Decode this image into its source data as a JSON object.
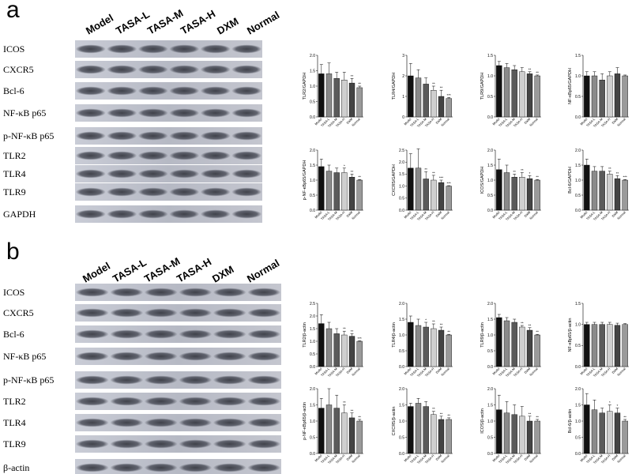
{
  "panels": [
    {
      "letter": "a",
      "lanes": [
        "Model",
        "TASA-L",
        "TASA-M",
        "TASA-H",
        "DXM",
        "Normal"
      ],
      "rows": [
        "ICOS",
        "CXCR5",
        "Bcl-6",
        "NF-κB p65",
        "p-NF-κB p65",
        "TLR2",
        "TLR4",
        "TLR9",
        "GAPDH"
      ]
    },
    {
      "letter": "b",
      "lanes": [
        "Model",
        "TASA-L",
        "TASA-M",
        "TASA-H",
        "DXM",
        "Normal"
      ],
      "rows": [
        "ICOS",
        "CXCR5",
        "Bcl-6",
        "NF-κB p65",
        "p-NF-κB p65",
        "TLR2",
        "TLR4",
        "TLR9",
        "β-actin"
      ]
    }
  ],
  "chart_data": [
    {
      "type": "bar",
      "ylabel": "TLR2/GAPDH",
      "categories": [
        "Model",
        "TASA-L",
        "TASA-M",
        "TASA-H",
        "DXM",
        "Normal"
      ],
      "values": [
        1.4,
        1.4,
        1.25,
        1.2,
        1.1,
        0.95
      ],
      "errors": [
        0.3,
        0.35,
        0.2,
        0.25,
        0.15,
        0.05
      ],
      "annotations": [
        null,
        null,
        null,
        null,
        "**",
        "**"
      ],
      "colors": [
        "#111111",
        "#8a8a8a",
        "#5a5a5a",
        "#cfcfcf",
        "#444444",
        "#9a9a9a"
      ],
      "ylim": [
        0,
        2
      ],
      "yticks": [
        {
          "value": 0,
          "label": "0.0"
        },
        0.5,
        {
          "value": 1,
          "label": "1.0"
        },
        1.5,
        {
          "value": 2,
          "label": "2.0"
        }
      ]
    },
    {
      "type": "bar",
      "ylabel": "TLR4/GAPDH",
      "categories": [
        "Model",
        "TASA-L",
        "TASA-M",
        "TASA-H",
        "DXM",
        "Normal"
      ],
      "values": [
        2.0,
        1.9,
        1.6,
        1.3,
        1.0,
        0.9
      ],
      "errors": [
        0.6,
        0.4,
        0.3,
        0.2,
        0.3,
        0.05
      ],
      "annotations": [
        null,
        null,
        null,
        "**",
        "**",
        "***"
      ],
      "colors": [
        "#111111",
        "#8a8a8a",
        "#5a5a5a",
        "#cfcfcf",
        "#444444",
        "#9a9a9a"
      ],
      "ylim": [
        0,
        3
      ],
      "yticks": [
        0,
        1,
        2,
        3
      ]
    },
    {
      "type": "bar",
      "ylabel": "TLR9/GAPDH",
      "categories": [
        "Model",
        "TASA-L",
        "TASA-M",
        "TASA-H",
        "DXM",
        "Normal"
      ],
      "values": [
        1.25,
        1.2,
        1.15,
        1.1,
        1.05,
        1.0
      ],
      "errors": [
        0.1,
        0.1,
        0.1,
        0.1,
        0.05,
        0.02
      ],
      "annotations": [
        null,
        null,
        null,
        null,
        "**",
        "**"
      ],
      "colors": [
        "#111111",
        "#8a8a8a",
        "#5a5a5a",
        "#cfcfcf",
        "#444444",
        "#9a9a9a"
      ],
      "ylim": [
        0,
        1.5
      ],
      "yticks": [
        {
          "value": 0,
          "label": "0.0"
        },
        0.5,
        {
          "value": 1,
          "label": "1.0"
        },
        1.5
      ]
    },
    {
      "type": "bar",
      "ylabel": "NF-κBp65/GAPDH",
      "categories": [
        "Model",
        "TASA-L",
        "TASA-M",
        "TASA-H",
        "DXM",
        "Normal"
      ],
      "values": [
        1.0,
        1.0,
        0.9,
        1.0,
        1.05,
        1.0
      ],
      "errors": [
        0.1,
        0.1,
        0.15,
        0.1,
        0.15,
        0.02
      ],
      "annotations": [
        null,
        null,
        null,
        null,
        null,
        null
      ],
      "colors": [
        "#111111",
        "#8a8a8a",
        "#5a5a5a",
        "#cfcfcf",
        "#444444",
        "#9a9a9a"
      ],
      "ylim": [
        0,
        1.5
      ],
      "yticks": [
        {
          "value": 0,
          "label": "0.0"
        },
        0.5,
        {
          "value": 1,
          "label": "1.0"
        },
        1.5
      ]
    },
    {
      "type": "bar",
      "ylabel": "p-NF-κBp65/GAPDH",
      "categories": [
        "Model",
        "TASA-L",
        "TASA-M",
        "TASA-H",
        "DXM",
        "Normal"
      ],
      "values": [
        1.45,
        1.3,
        1.25,
        1.25,
        1.1,
        1.0
      ],
      "errors": [
        0.25,
        0.2,
        0.15,
        0.15,
        0.1,
        0.02
      ],
      "annotations": [
        null,
        null,
        null,
        "*",
        "**",
        "**"
      ],
      "colors": [
        "#111111",
        "#8a8a8a",
        "#5a5a5a",
        "#cfcfcf",
        "#444444",
        "#9a9a9a"
      ],
      "ylim": [
        0,
        2
      ],
      "yticks": [
        {
          "value": 0,
          "label": "0.0"
        },
        0.5,
        {
          "value": 1,
          "label": "1.0"
        },
        1.5,
        {
          "value": 2,
          "label": "2.0"
        }
      ]
    },
    {
      "type": "bar",
      "ylabel": "CXCR5/GAPDH",
      "categories": [
        "Model",
        "TASA-L",
        "TASA-M",
        "TASA-H",
        "DXM",
        "Normal"
      ],
      "values": [
        1.75,
        1.75,
        1.3,
        1.25,
        1.15,
        1.0
      ],
      "errors": [
        0.6,
        0.8,
        0.3,
        0.2,
        0.1,
        0.02
      ],
      "annotations": [
        null,
        null,
        "**",
        "**",
        "***",
        "***"
      ],
      "colors": [
        "#111111",
        "#8a8a8a",
        "#5a5a5a",
        "#cfcfcf",
        "#444444",
        "#9a9a9a"
      ],
      "ylim": [
        0,
        2.5
      ],
      "yticks": [
        {
          "value": 0,
          "label": "0.0"
        },
        0.5,
        {
          "value": 1,
          "label": "1.0"
        },
        1.5,
        {
          "value": 2,
          "label": "2.0"
        },
        2.5
      ]
    },
    {
      "type": "bar",
      "ylabel": "ICOS/GAPDH",
      "categories": [
        "Model",
        "TASA-L",
        "TASA-M",
        "TASA-H",
        "DXM",
        "Normal"
      ],
      "values": [
        1.35,
        1.25,
        1.1,
        1.1,
        1.05,
        1.0
      ],
      "errors": [
        0.35,
        0.25,
        0.1,
        0.15,
        0.1,
        0.02
      ],
      "annotations": [
        null,
        null,
        "**",
        "**",
        "*",
        "**"
      ],
      "colors": [
        "#111111",
        "#8a8a8a",
        "#5a5a5a",
        "#cfcfcf",
        "#444444",
        "#9a9a9a"
      ],
      "ylim": [
        0,
        2
      ],
      "yticks": [
        {
          "value": 0,
          "label": "0.0"
        },
        0.5,
        {
          "value": 1,
          "label": "1.0"
        },
        1.5,
        {
          "value": 2,
          "label": "2.0"
        }
      ]
    },
    {
      "type": "bar",
      "ylabel": "Bcl-6/GAPDH",
      "categories": [
        "Model",
        "TASA-L",
        "TASA-M",
        "TASA-H",
        "DXM",
        "Normal"
      ],
      "values": [
        1.5,
        1.3,
        1.3,
        1.2,
        1.05,
        1.0
      ],
      "errors": [
        0.2,
        0.15,
        0.15,
        0.1,
        0.1,
        0.02
      ],
      "annotations": [
        null,
        null,
        null,
        "**",
        "**",
        "***"
      ],
      "colors": [
        "#111111",
        "#8a8a8a",
        "#5a5a5a",
        "#cfcfcf",
        "#444444",
        "#9a9a9a"
      ],
      "ylim": [
        0,
        2
      ],
      "yticks": [
        {
          "value": 0,
          "label": "0.0"
        },
        0.5,
        {
          "value": 1,
          "label": "1.0"
        },
        1.5,
        {
          "value": 2,
          "label": "2.0"
        }
      ]
    },
    {
      "type": "bar",
      "ylabel": "TLR2/β-actin",
      "categories": [
        "Model",
        "TASA-L",
        "TASA-M",
        "TASA-H",
        "DXM",
        "Normal"
      ],
      "values": [
        1.7,
        1.5,
        1.3,
        1.25,
        1.2,
        1.0
      ],
      "errors": [
        0.35,
        0.25,
        0.2,
        0.15,
        0.1,
        0.02
      ],
      "annotations": [
        null,
        null,
        null,
        "**",
        "**",
        "***"
      ],
      "colors": [
        "#111111",
        "#8a8a8a",
        "#5a5a5a",
        "#cfcfcf",
        "#444444",
        "#9a9a9a"
      ],
      "ylim": [
        0,
        2.5
      ],
      "yticks": [
        {
          "value": 0,
          "label": "0.0"
        },
        0.5,
        {
          "value": 1,
          "label": "1.0"
        },
        1.5,
        {
          "value": 2,
          "label": "2.0"
        },
        2.5
      ]
    },
    {
      "type": "bar",
      "ylabel": "TLR4/β-actin",
      "categories": [
        "Model",
        "TASA-L",
        "TASA-M",
        "TASA-H",
        "DXM",
        "Normal"
      ],
      "values": [
        1.4,
        1.3,
        1.25,
        1.2,
        1.15,
        1.0
      ],
      "errors": [
        0.2,
        0.2,
        0.15,
        0.15,
        0.1,
        0.02
      ],
      "annotations": [
        null,
        null,
        "*",
        "**",
        "**",
        "**"
      ],
      "colors": [
        "#111111",
        "#8a8a8a",
        "#5a5a5a",
        "#cfcfcf",
        "#444444",
        "#9a9a9a"
      ],
      "ylim": [
        0,
        2
      ],
      "yticks": [
        {
          "value": 0,
          "label": "0.0"
        },
        0.5,
        {
          "value": 1,
          "label": "1.0"
        },
        1.5,
        {
          "value": 2,
          "label": "2.0"
        }
      ]
    },
    {
      "type": "bar",
      "ylabel": "TLR9/β-actin",
      "categories": [
        "Model",
        "TASA-L",
        "TASA-M",
        "TASA-H",
        "DXM",
        "Normal"
      ],
      "values": [
        1.55,
        1.45,
        1.4,
        1.25,
        1.15,
        1.0
      ],
      "errors": [
        0.1,
        0.1,
        0.1,
        0.05,
        0.08,
        0.02
      ],
      "annotations": [
        null,
        null,
        null,
        "**",
        "**",
        "**"
      ],
      "colors": [
        "#111111",
        "#8a8a8a",
        "#5a5a5a",
        "#cfcfcf",
        "#444444",
        "#9a9a9a"
      ],
      "ylim": [
        0,
        2
      ],
      "yticks": [
        {
          "value": 0,
          "label": "0.0"
        },
        0.5,
        {
          "value": 1,
          "label": "1.0"
        },
        1.5,
        {
          "value": 2,
          "label": "2.0"
        }
      ]
    },
    {
      "type": "bar",
      "ylabel": "NF-κBp65/β-actin",
      "categories": [
        "Model",
        "TASA-L",
        "TASA-M",
        "TASA-H",
        "DXM",
        "Normal"
      ],
      "values": [
        1.0,
        1.0,
        1.0,
        1.0,
        0.98,
        1.0
      ],
      "errors": [
        0.05,
        0.05,
        0.05,
        0.05,
        0.05,
        0.02
      ],
      "annotations": [
        null,
        null,
        null,
        null,
        null,
        null
      ],
      "colors": [
        "#111111",
        "#8a8a8a",
        "#5a5a5a",
        "#cfcfcf",
        "#444444",
        "#9a9a9a"
      ],
      "ylim": [
        0,
        1.5
      ],
      "yticks": [
        {
          "value": 0,
          "label": "0.0"
        },
        0.5,
        {
          "value": 1,
          "label": "1.0"
        },
        1.5
      ]
    },
    {
      "type": "bar",
      "ylabel": "p-NF-κBp65/β-actin",
      "categories": [
        "Model",
        "TASA-L",
        "TASA-M",
        "TASA-H",
        "DXM",
        "Normal"
      ],
      "values": [
        1.4,
        1.5,
        1.4,
        1.25,
        1.1,
        1.0
      ],
      "errors": [
        0.3,
        0.5,
        0.4,
        0.25,
        0.15,
        0.05
      ],
      "annotations": [
        null,
        null,
        null,
        "**",
        "**",
        "**"
      ],
      "colors": [
        "#111111",
        "#8a8a8a",
        "#5a5a5a",
        "#cfcfcf",
        "#444444",
        "#9a9a9a"
      ],
      "ylim": [
        0,
        2
      ],
      "yticks": [
        {
          "value": 0,
          "label": "0.0"
        },
        0.5,
        {
          "value": 1,
          "label": "1.0"
        },
        1.5,
        {
          "value": 2,
          "label": "2.0"
        }
      ]
    },
    {
      "type": "bar",
      "ylabel": "CXCR5/β-actin",
      "categories": [
        "Model",
        "TASA-L",
        "TASA-M",
        "TASA-H",
        "DXM",
        "Normal"
      ],
      "values": [
        1.45,
        1.55,
        1.45,
        1.2,
        1.05,
        1.05
      ],
      "errors": [
        0.1,
        0.15,
        0.15,
        0.1,
        0.1,
        0.05
      ],
      "annotations": [
        null,
        null,
        null,
        "**",
        "**",
        "**"
      ],
      "colors": [
        "#111111",
        "#8a8a8a",
        "#5a5a5a",
        "#cfcfcf",
        "#444444",
        "#9a9a9a"
      ],
      "ylim": [
        0,
        2
      ],
      "yticks": [
        {
          "value": 0,
          "label": "0.0"
        },
        0.5,
        {
          "value": 1,
          "label": "1.0"
        },
        1.5,
        {
          "value": 2,
          "label": "2.0"
        }
      ]
    },
    {
      "type": "bar",
      "ylabel": "ICOS/β-actin",
      "categories": [
        "Model",
        "TASA-L",
        "TASA-M",
        "TASA-H",
        "DXM",
        "Normal"
      ],
      "values": [
        1.35,
        1.25,
        1.2,
        1.15,
        1.0,
        1.0
      ],
      "errors": [
        0.45,
        0.35,
        0.3,
        0.3,
        0.15,
        0.05
      ],
      "annotations": [
        null,
        null,
        null,
        null,
        "**",
        "**"
      ],
      "colors": [
        "#111111",
        "#8a8a8a",
        "#5a5a5a",
        "#cfcfcf",
        "#444444",
        "#9a9a9a"
      ],
      "ylim": [
        0,
        2
      ],
      "yticks": [
        {
          "value": 0,
          "label": "0.0"
        },
        0.5,
        {
          "value": 1,
          "label": "1.0"
        },
        1.5,
        {
          "value": 2,
          "label": "2.0"
        }
      ]
    },
    {
      "type": "bar",
      "ylabel": "Bcl-6/β-actin",
      "categories": [
        "Model",
        "TASA-L",
        "TASA-M",
        "TASA-H",
        "DXM",
        "Normal"
      ],
      "values": [
        1.5,
        1.35,
        1.25,
        1.3,
        1.25,
        1.0
      ],
      "errors": [
        0.35,
        0.3,
        0.15,
        0.2,
        0.15,
        0.05
      ],
      "annotations": [
        null,
        null,
        null,
        "*",
        "*",
        "**"
      ],
      "colors": [
        "#111111",
        "#8a8a8a",
        "#5a5a5a",
        "#cfcfcf",
        "#444444",
        "#9a9a9a"
      ],
      "ylim": [
        0,
        2
      ],
      "yticks": [
        {
          "value": 0,
          "label": "0.0"
        },
        0.5,
        {
          "value": 1,
          "label": "1.0"
        },
        1.5,
        {
          "value": 2,
          "label": "2.0"
        }
      ]
    }
  ]
}
